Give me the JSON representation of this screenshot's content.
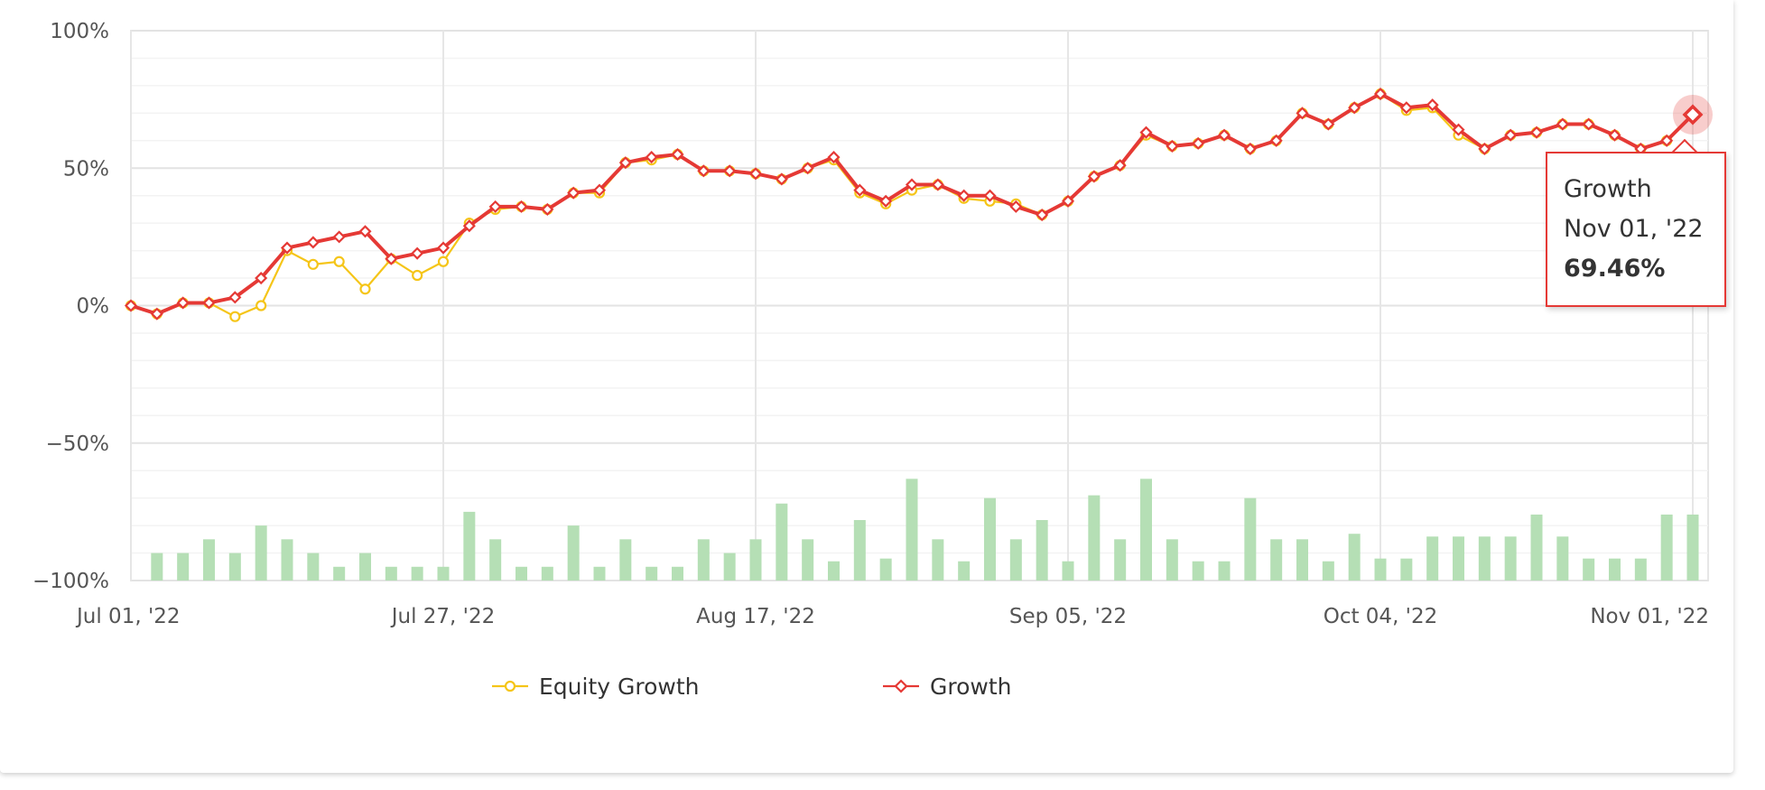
{
  "chart_data": {
    "type": "line",
    "y_ticks": [
      "100%",
      "50%",
      "0%",
      "−50%",
      "−100%"
    ],
    "y_tick_values": [
      100,
      50,
      0,
      -50,
      -100
    ],
    "ylim": [
      -100,
      100
    ],
    "x_tick_labels": [
      "Jul 01, '22",
      "Jul 27, '22",
      "Aug 17, '22",
      "Sep 05, '22",
      "Oct 04, '22",
      "Nov 01, '22"
    ],
    "x_tick_points": [
      0,
      12,
      24,
      36,
      48,
      60
    ],
    "n_points": 61,
    "grid": true,
    "series": [
      {
        "name": "Equity Growth",
        "color": "#f5c518",
        "marker": "circle",
        "values": [
          0,
          -3,
          1,
          1,
          -4,
          0,
          20,
          15,
          16,
          6,
          17,
          11,
          16,
          30,
          35,
          36,
          35,
          41,
          41,
          52,
          53,
          55,
          49,
          49,
          48,
          46,
          50,
          53,
          41,
          37,
          42,
          44,
          39,
          38,
          37,
          33,
          38,
          47,
          51,
          62,
          58,
          59,
          62,
          57,
          60,
          70,
          66,
          72,
          77,
          71,
          72,
          62,
          57,
          62,
          63,
          66,
          66,
          62,
          57,
          60,
          69.46
        ]
      },
      {
        "name": "Growth",
        "color": "#e53935",
        "marker": "diamond",
        "values": [
          0,
          -3,
          1,
          1,
          3,
          10,
          21,
          23,
          25,
          27,
          17,
          19,
          21,
          29,
          36,
          36,
          35,
          41,
          42,
          52,
          54,
          55,
          49,
          49,
          48,
          46,
          50,
          54,
          42,
          38,
          44,
          44,
          40,
          40,
          36,
          33,
          38,
          47,
          51,
          63,
          58,
          59,
          62,
          57,
          60,
          70,
          66,
          72,
          77,
          72,
          73,
          64,
          57,
          62,
          63,
          66,
          66,
          62,
          57,
          60,
          69.46
        ]
      }
    ],
    "bars": {
      "color": "#b5dfb5",
      "points": [
        1,
        2,
        3,
        4,
        5,
        6,
        7,
        8,
        9,
        10,
        11,
        12,
        13,
        14,
        15,
        16,
        17,
        18,
        19,
        20,
        21,
        22,
        23,
        24,
        25,
        26,
        27,
        28,
        29,
        30,
        31,
        32,
        33,
        34,
        35,
        36,
        37,
        38,
        39,
        40,
        41,
        42,
        43,
        44,
        45,
        46,
        47,
        48,
        49,
        50,
        51,
        52,
        53,
        54,
        55,
        56,
        57,
        58,
        59,
        60
      ],
      "values": [
        10,
        10,
        15,
        10,
        20,
        15,
        10,
        5,
        10,
        5,
        5,
        5,
        25,
        15,
        5,
        5,
        20,
        5,
        15,
        5,
        5,
        15,
        10,
        15,
        28,
        15,
        7,
        22,
        8,
        37,
        15,
        7,
        30,
        15,
        22,
        7,
        31,
        15,
        37,
        15,
        7,
        7,
        30,
        15,
        15,
        7,
        17,
        8,
        8,
        16,
        16,
        16,
        16,
        24,
        16,
        8,
        8,
        8,
        24,
        24
      ]
    },
    "legend": [
      "Equity Growth",
      "Growth"
    ],
    "legend_position": "bottom"
  },
  "tooltip": {
    "series": "Growth",
    "date": "Nov 01, '22",
    "value": "69.46%"
  }
}
